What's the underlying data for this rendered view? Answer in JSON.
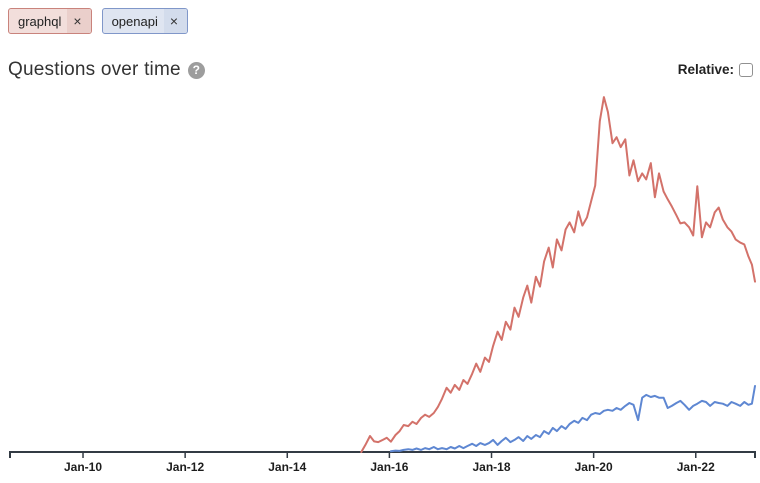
{
  "tags": [
    {
      "label": "graphql",
      "remove_label": "×",
      "color": "#d3726a",
      "chip_bg": "#f2dedb",
      "chip_border": "#c9837c"
    },
    {
      "label": "openapi",
      "remove_label": "×",
      "color": "#5e87d2",
      "chip_bg": "#dfe5f1",
      "chip_border": "#8097c9"
    }
  ],
  "header": {
    "title": "Questions over time",
    "help_glyph": "?",
    "relative_label": "Relative:",
    "relative_checked": false
  },
  "chart_data": {
    "type": "line",
    "title": "Questions over time",
    "xlabel": "",
    "ylabel": "",
    "y_axis_shown": false,
    "grid": false,
    "legend_position": "none (series identified by tag chip colors)",
    "y_units": "questions per month, relative scale (no y-axis labels shown; peak of graphql = 100)",
    "xlim": [
      2008.57,
      2023.16
    ],
    "ylim": [
      0,
      102
    ],
    "axis_color": "#333b44",
    "x_ticks": [
      {
        "year": 2010,
        "label": "Jan-10"
      },
      {
        "year": 2012,
        "label": "Jan-12"
      },
      {
        "year": 2014,
        "label": "Jan-14"
      },
      {
        "year": 2016,
        "label": "Jan-16"
      },
      {
        "year": 2018,
        "label": "Jan-18"
      },
      {
        "year": 2020,
        "label": "Jan-20"
      },
      {
        "year": 2022,
        "label": "Jan-22"
      }
    ],
    "series": [
      {
        "name": "graphql",
        "color": "#d3726a",
        "points": [
          [
            2015.45,
            0
          ],
          [
            2015.53,
            2.0
          ],
          [
            2015.62,
            4.5
          ],
          [
            2015.7,
            3.0
          ],
          [
            2015.78,
            2.8
          ],
          [
            2015.87,
            3.4
          ],
          [
            2015.95,
            4.0
          ],
          [
            2016.03,
            2.9
          ],
          [
            2016.12,
            4.8
          ],
          [
            2016.2,
            5.9
          ],
          [
            2016.28,
            7.6
          ],
          [
            2016.37,
            7.3
          ],
          [
            2016.45,
            8.5
          ],
          [
            2016.53,
            7.9
          ],
          [
            2016.62,
            9.6
          ],
          [
            2016.7,
            10.5
          ],
          [
            2016.78,
            9.9
          ],
          [
            2016.87,
            11.0
          ],
          [
            2016.95,
            12.7
          ],
          [
            2017.03,
            15.0
          ],
          [
            2017.12,
            18.1
          ],
          [
            2017.2,
            16.7
          ],
          [
            2017.28,
            18.9
          ],
          [
            2017.37,
            17.5
          ],
          [
            2017.45,
            20.3
          ],
          [
            2017.53,
            19.2
          ],
          [
            2017.62,
            22.0
          ],
          [
            2017.7,
            24.9
          ],
          [
            2017.78,
            22.6
          ],
          [
            2017.87,
            26.6
          ],
          [
            2017.95,
            25.4
          ],
          [
            2018.03,
            29.9
          ],
          [
            2018.12,
            33.9
          ],
          [
            2018.2,
            31.6
          ],
          [
            2018.28,
            36.7
          ],
          [
            2018.37,
            34.5
          ],
          [
            2018.45,
            40.7
          ],
          [
            2018.53,
            38.1
          ],
          [
            2018.62,
            43.5
          ],
          [
            2018.7,
            46.9
          ],
          [
            2018.78,
            42.1
          ],
          [
            2018.87,
            49.4
          ],
          [
            2018.95,
            46.6
          ],
          [
            2019.03,
            53.7
          ],
          [
            2019.12,
            57.6
          ],
          [
            2019.2,
            52.0
          ],
          [
            2019.28,
            59.9
          ],
          [
            2019.37,
            56.8
          ],
          [
            2019.45,
            62.7
          ],
          [
            2019.53,
            64.7
          ],
          [
            2019.62,
            61.9
          ],
          [
            2019.7,
            67.8
          ],
          [
            2019.78,
            63.8
          ],
          [
            2019.87,
            66.1
          ],
          [
            2019.95,
            70.6
          ],
          [
            2020.03,
            75.1
          ],
          [
            2020.12,
            93.2
          ],
          [
            2020.2,
            100
          ],
          [
            2020.28,
            95.8
          ],
          [
            2020.37,
            87.0
          ],
          [
            2020.45,
            88.7
          ],
          [
            2020.53,
            85.9
          ],
          [
            2020.62,
            88.1
          ],
          [
            2020.7,
            77.9
          ],
          [
            2020.78,
            82.2
          ],
          [
            2020.87,
            76.3
          ],
          [
            2020.95,
            78.5
          ],
          [
            2021.03,
            76.8
          ],
          [
            2021.12,
            81.4
          ],
          [
            2021.2,
            71.8
          ],
          [
            2021.28,
            78.5
          ],
          [
            2021.37,
            73.4
          ],
          [
            2021.45,
            71.2
          ],
          [
            2021.53,
            69.2
          ],
          [
            2021.62,
            66.7
          ],
          [
            2021.7,
            64.4
          ],
          [
            2021.78,
            64.7
          ],
          [
            2021.87,
            63.3
          ],
          [
            2021.95,
            61.0
          ],
          [
            2022.03,
            74.9
          ],
          [
            2022.12,
            60.5
          ],
          [
            2022.2,
            64.7
          ],
          [
            2022.28,
            63.3
          ],
          [
            2022.37,
            67.5
          ],
          [
            2022.45,
            68.9
          ],
          [
            2022.53,
            65.5
          ],
          [
            2022.62,
            63.3
          ],
          [
            2022.7,
            62.1
          ],
          [
            2022.78,
            59.9
          ],
          [
            2022.87,
            59.0
          ],
          [
            2022.95,
            58.5
          ],
          [
            2023.03,
            55.1
          ],
          [
            2023.1,
            52.8
          ],
          [
            2023.16,
            48.0
          ]
        ]
      },
      {
        "name": "openapi",
        "color": "#5e87d2",
        "points": [
          [
            2016.03,
            0.2
          ],
          [
            2016.12,
            0.4
          ],
          [
            2016.2,
            0.3
          ],
          [
            2016.28,
            0.6
          ],
          [
            2016.37,
            0.8
          ],
          [
            2016.45,
            0.6
          ],
          [
            2016.53,
            1.0
          ],
          [
            2016.62,
            0.6
          ],
          [
            2016.7,
            1.1
          ],
          [
            2016.78,
            0.8
          ],
          [
            2016.87,
            1.4
          ],
          [
            2016.95,
            0.8
          ],
          [
            2017.03,
            1.1
          ],
          [
            2017.12,
            0.8
          ],
          [
            2017.2,
            1.4
          ],
          [
            2017.28,
            1.0
          ],
          [
            2017.37,
            1.7
          ],
          [
            2017.45,
            1.1
          ],
          [
            2017.53,
            1.7
          ],
          [
            2017.62,
            2.3
          ],
          [
            2017.7,
            1.7
          ],
          [
            2017.78,
            2.5
          ],
          [
            2017.87,
            2.0
          ],
          [
            2017.95,
            2.5
          ],
          [
            2018.03,
            3.4
          ],
          [
            2018.12,
            2.0
          ],
          [
            2018.2,
            3.1
          ],
          [
            2018.28,
            4.0
          ],
          [
            2018.37,
            2.8
          ],
          [
            2018.45,
            3.4
          ],
          [
            2018.53,
            4.2
          ],
          [
            2018.62,
            3.1
          ],
          [
            2018.7,
            4.5
          ],
          [
            2018.78,
            3.7
          ],
          [
            2018.87,
            4.8
          ],
          [
            2018.95,
            4.2
          ],
          [
            2019.03,
            5.9
          ],
          [
            2019.12,
            5.1
          ],
          [
            2019.2,
            6.8
          ],
          [
            2019.28,
            5.9
          ],
          [
            2019.37,
            7.3
          ],
          [
            2019.45,
            6.5
          ],
          [
            2019.53,
            7.9
          ],
          [
            2019.62,
            8.8
          ],
          [
            2019.7,
            8.2
          ],
          [
            2019.78,
            9.6
          ],
          [
            2019.87,
            9.0
          ],
          [
            2019.95,
            10.5
          ],
          [
            2020.03,
            11.0
          ],
          [
            2020.12,
            10.7
          ],
          [
            2020.2,
            11.6
          ],
          [
            2020.28,
            11.9
          ],
          [
            2020.37,
            11.6
          ],
          [
            2020.45,
            12.4
          ],
          [
            2020.53,
            11.9
          ],
          [
            2020.62,
            13.0
          ],
          [
            2020.7,
            13.8
          ],
          [
            2020.78,
            13.3
          ],
          [
            2020.87,
            9.0
          ],
          [
            2020.95,
            15.3
          ],
          [
            2021.03,
            16.1
          ],
          [
            2021.12,
            15.5
          ],
          [
            2021.2,
            15.8
          ],
          [
            2021.28,
            15.3
          ],
          [
            2021.37,
            15.3
          ],
          [
            2021.45,
            12.4
          ],
          [
            2021.53,
            13.0
          ],
          [
            2021.62,
            13.8
          ],
          [
            2021.7,
            14.4
          ],
          [
            2021.78,
            13.3
          ],
          [
            2021.87,
            11.9
          ],
          [
            2021.95,
            13.0
          ],
          [
            2022.03,
            13.6
          ],
          [
            2022.12,
            14.4
          ],
          [
            2022.2,
            14.1
          ],
          [
            2022.28,
            13.0
          ],
          [
            2022.37,
            14.1
          ],
          [
            2022.45,
            13.8
          ],
          [
            2022.53,
            13.6
          ],
          [
            2022.62,
            13.0
          ],
          [
            2022.7,
            14.1
          ],
          [
            2022.78,
            13.6
          ],
          [
            2022.87,
            13.0
          ],
          [
            2022.95,
            14.1
          ],
          [
            2023.03,
            13.3
          ],
          [
            2023.1,
            13.6
          ],
          [
            2023.16,
            18.6
          ]
        ]
      }
    ]
  }
}
